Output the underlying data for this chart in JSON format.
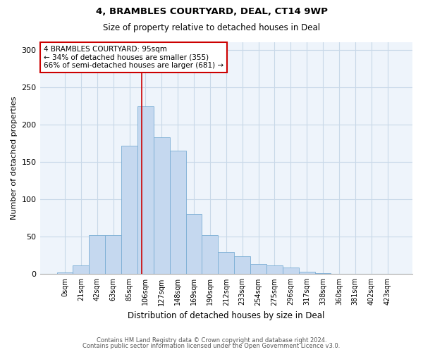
{
  "title1": "4, BRAMBLES COURTYARD, DEAL, CT14 9WP",
  "title2": "Size of property relative to detached houses in Deal",
  "xlabel": "Distribution of detached houses by size in Deal",
  "ylabel": "Number of detached properties",
  "bar_labels": [
    "0sqm",
    "21sqm",
    "42sqm",
    "63sqm",
    "85sqm",
    "106sqm",
    "127sqm",
    "148sqm",
    "169sqm",
    "190sqm",
    "212sqm",
    "233sqm",
    "254sqm",
    "275sqm",
    "296sqm",
    "317sqm",
    "338sqm",
    "360sqm",
    "381sqm",
    "402sqm",
    "423sqm"
  ],
  "bar_values": [
    2,
    12,
    52,
    52,
    172,
    224,
    183,
    165,
    80,
    52,
    29,
    24,
    13,
    12,
    9,
    3,
    1,
    0,
    0,
    0,
    0
  ],
  "bar_color": "#c5d8ef",
  "bar_edge_color": "#7aadd4",
  "annotation_text": "4 BRAMBLES COURTYARD: 95sqm\n← 34% of detached houses are smaller (355)\n66% of semi-detached houses are larger (681) →",
  "vline_x_index": 4.75,
  "vline_color": "#cc0000",
  "annotation_box_edge": "#cc0000",
  "footer1": "Contains HM Land Registry data © Crown copyright and database right 2024.",
  "footer2": "Contains public sector information licensed under the Open Government Licence v3.0.",
  "ylim": [
    0,
    310
  ],
  "yticks": [
    0,
    50,
    100,
    150,
    200,
    250,
    300
  ],
  "background_color": "#ffffff",
  "grid_color": "#c8d8e8"
}
